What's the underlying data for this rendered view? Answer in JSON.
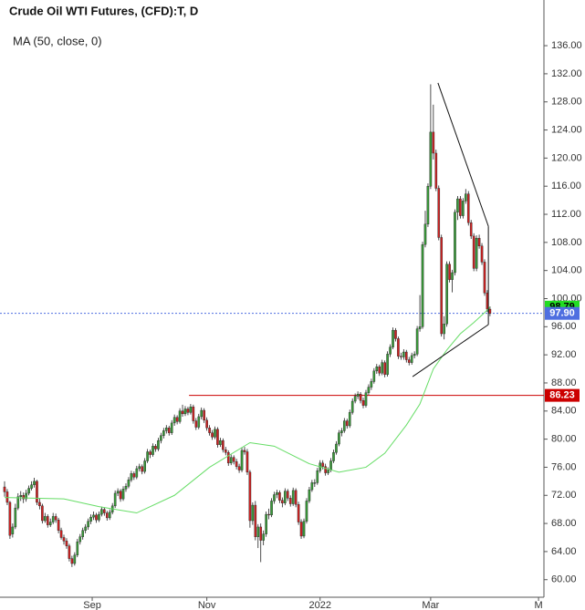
{
  "chart_data": {
    "type": "candlestick",
    "title": "Crude Oil WTI Futures, (CFD):T, D",
    "up_color": "#3a9a3a",
    "down_color": "#cc2222",
    "xlim": [
      0,
      200
    ],
    "xticks": [
      {
        "value": 32.5,
        "label": "Sep"
      },
      {
        "value": 75,
        "label": "Nov"
      },
      {
        "value": 117,
        "label": "2022"
      },
      {
        "value": 158,
        "label": "Mar"
      },
      {
        "value": 198,
        "label": "M"
      }
    ],
    "ylim": [
      57.5,
      142.5
    ],
    "yticks": [
      {
        "value": 60,
        "label": "60.00"
      },
      {
        "value": 64,
        "label": "64.00"
      },
      {
        "value": 68,
        "label": "68.00"
      },
      {
        "value": 72,
        "label": "72.00"
      },
      {
        "value": 76,
        "label": "76.00"
      },
      {
        "value": 80,
        "label": "80.00"
      },
      {
        "value": 84,
        "label": "84.00"
      },
      {
        "value": 88,
        "label": "88.00"
      },
      {
        "value": 92,
        "label": "92.00"
      },
      {
        "value": 96,
        "label": "96.00"
      },
      {
        "value": 100,
        "label": "100.00"
      },
      {
        "value": 104,
        "label": "104.00"
      },
      {
        "value": 108,
        "label": "108.00"
      },
      {
        "value": 112,
        "label": "112.00"
      },
      {
        "value": 116,
        "label": "116.00"
      },
      {
        "value": 120,
        "label": "120.00"
      },
      {
        "value": 124,
        "label": "124.00"
      },
      {
        "value": 128,
        "label": "128.00"
      },
      {
        "value": 132,
        "label": "132.00"
      },
      {
        "value": 136,
        "label": "136.00"
      }
    ],
    "ohlc": [
      [
        73.2,
        74.0,
        71.8,
        72.5
      ],
      [
        72.5,
        72.9,
        70.6,
        71
      ],
      [
        71,
        71.2,
        65.8,
        66.3
      ],
      [
        66.5,
        68,
        66,
        67.5
      ],
      [
        67.5,
        70.8,
        67.2,
        70.2
      ],
      [
        70.2,
        72.3,
        69.9,
        71.8
      ],
      [
        71.8,
        72.6,
        71.2,
        72
      ],
      [
        72,
        72.4,
        70.9,
        71.5
      ],
      [
        71.5,
        72.8,
        71.1,
        72.3
      ],
      [
        72.3,
        73.4,
        72,
        73
      ],
      [
        73,
        74,
        72.7,
        73.5
      ],
      [
        73.5,
        74.5,
        73.1,
        74
      ],
      [
        74,
        74.2,
        70.6,
        71
      ],
      [
        71,
        71.6,
        70,
        70.5
      ],
      [
        70.5,
        70.8,
        68,
        68.4
      ],
      [
        68.4,
        69.5,
        68.1,
        69
      ],
      [
        69,
        69.3,
        67.4,
        67.8
      ],
      [
        67.8,
        68.7,
        67.5,
        68.2
      ],
      [
        68.2,
        69.5,
        67.9,
        69
      ],
      [
        69,
        69.4,
        68.1,
        68.5
      ],
      [
        68.5,
        68.8,
        66.6,
        67
      ],
      [
        67,
        67.4,
        65.7,
        66
      ],
      [
        66,
        66.4,
        65,
        65.5
      ],
      [
        65.5,
        65.9,
        64.4,
        64.8
      ],
      [
        64.8,
        65.1,
        62.6,
        63
      ],
      [
        63,
        63.4,
        61.8,
        62.3
      ],
      [
        62.3,
        63.9,
        62,
        63.5
      ],
      [
        63.5,
        65.8,
        63.2,
        65.4
      ],
      [
        65.4,
        66.5,
        65,
        66.1
      ],
      [
        66.1,
        67.4,
        65.7,
        67
      ],
      [
        67,
        67.9,
        66.6,
        67.5
      ],
      [
        67.5,
        68.7,
        67.1,
        68.3
      ],
      [
        68.3,
        69.3,
        67.9,
        68.9
      ],
      [
        68.9,
        69.7,
        68.5,
        69.2
      ],
      [
        69.2,
        69.5,
        68.1,
        68.5
      ],
      [
        68.5,
        69.7,
        68.2,
        69.3
      ],
      [
        69.3,
        70.4,
        69,
        70
      ],
      [
        70,
        70.3,
        69.1,
        69.5
      ],
      [
        69.5,
        69.8,
        68.4,
        68.8
      ],
      [
        68.8,
        70,
        68.5,
        69.6
      ],
      [
        69.6,
        70.9,
        69.3,
        70.5
      ],
      [
        70.5,
        72.7,
        70.2,
        72.3
      ],
      [
        72.3,
        73,
        71.9,
        72.6
      ],
      [
        72.6,
        72.9,
        71.1,
        71.5
      ],
      [
        71.5,
        73.3,
        71.2,
        72.9
      ],
      [
        72.9,
        73.7,
        72.5,
        73.3
      ],
      [
        73.3,
        74.6,
        73,
        74.2
      ],
      [
        74.2,
        75.5,
        73.9,
        75.1
      ],
      [
        75.1,
        75.4,
        74.2,
        74.6
      ],
      [
        74.6,
        76.2,
        74.3,
        75.8
      ],
      [
        75.8,
        76.5,
        75.4,
        76.1
      ],
      [
        76.1,
        76.4,
        75,
        75.4
      ],
      [
        75.4,
        77.3,
        75.1,
        76.9
      ],
      [
        76.9,
        78.6,
        76.6,
        78.2
      ],
      [
        78.2,
        78.5,
        77.3,
        77.8
      ],
      [
        77.8,
        79.4,
        77.5,
        79
      ],
      [
        79,
        79.3,
        78.2,
        78.6
      ],
      [
        78.6,
        80.2,
        78.3,
        79.8
      ],
      [
        79.8,
        80.9,
        79.4,
        80.5
      ],
      [
        80.5,
        81.6,
        80.1,
        81.2
      ],
      [
        81.2,
        82,
        80.8,
        81.6
      ],
      [
        81.6,
        81.9,
        80.5,
        80.9
      ],
      [
        80.9,
        82.7,
        80.6,
        82.3
      ],
      [
        82.3,
        83.5,
        81.9,
        83.1
      ],
      [
        83.1,
        83.4,
        82.1,
        82.5
      ],
      [
        82.5,
        84.4,
        82.2,
        84
      ],
      [
        84,
        84.9,
        83.2,
        83.6
      ],
      [
        83.6,
        84.7,
        83.3,
        84.3
      ],
      [
        84.3,
        84.6,
        83.4,
        83.8
      ],
      [
        83.8,
        85,
        83.5,
        84.6
      ],
      [
        84.6,
        84.9,
        82.2,
        82.6
      ],
      [
        82.6,
        83,
        81.3,
        81.7
      ],
      [
        81.7,
        83.6,
        81.4,
        83.2
      ],
      [
        83.2,
        84.5,
        82.8,
        84.1
      ],
      [
        84.1,
        84.4,
        82.3,
        82.7
      ],
      [
        82.7,
        83.1,
        81.2,
        81.6
      ],
      [
        81.6,
        82,
        80.5,
        80.9
      ],
      [
        80.9,
        81.3,
        79.9,
        80.3
      ],
      [
        80.3,
        81.8,
        80,
        81.4
      ],
      [
        81.4,
        81.7,
        78.8,
        79.2
      ],
      [
        79.2,
        80.2,
        78.9,
        79.8
      ],
      [
        79.8,
        80.1,
        78.1,
        78.5
      ],
      [
        78.5,
        78.9,
        77.7,
        78.1
      ],
      [
        78.1,
        78.4,
        76.2,
        76.6
      ],
      [
        76.6,
        77.8,
        76.3,
        77.4
      ],
      [
        77.4,
        77.7,
        76.4,
        76.8
      ],
      [
        76.8,
        77.2,
        75.7,
        76.1
      ],
      [
        76.1,
        76.5,
        75.2,
        75.6
      ],
      [
        75.6,
        78.8,
        75.3,
        78.4
      ],
      [
        78.4,
        78.9,
        77.8,
        78.2
      ],
      [
        78.2,
        78.6,
        74.9,
        75.3
      ],
      [
        75.3,
        75.6,
        67.4,
        68.4
      ],
      [
        68.4,
        71,
        67.8,
        70.6
      ],
      [
        70.6,
        71.2,
        65.6,
        66.1
      ],
      [
        66.1,
        67.9,
        64.5,
        67.5
      ],
      [
        67.5,
        68,
        62.5,
        65.6
      ],
      [
        65.6,
        67,
        64.9,
        66.5
      ],
      [
        66.5,
        69.7,
        66.1,
        69.3
      ],
      [
        69.3,
        70.1,
        68.6,
        69.2
      ],
      [
        69.2,
        71.6,
        68.9,
        71.2
      ],
      [
        71.2,
        72.5,
        70.8,
        72.1
      ],
      [
        72.1,
        72.8,
        71.6,
        72.4
      ],
      [
        72.4,
        72.7,
        70.9,
        71.3
      ],
      [
        71.3,
        71.7,
        70.3,
        70.9
      ],
      [
        70.9,
        73,
        70.6,
        72.6
      ],
      [
        72.6,
        72.9,
        71.2,
        71.6
      ],
      [
        71.6,
        72,
        70.4,
        70.8
      ],
      [
        70.8,
        73.1,
        70.5,
        72.7
      ],
      [
        72.7,
        73,
        70.3,
        70.7
      ],
      [
        70.7,
        71.1,
        67.8,
        68.2
      ],
      [
        68.2,
        68.6,
        65.8,
        66.2
      ],
      [
        66.2,
        68.7,
        65.9,
        68.3
      ],
      [
        68.3,
        71.6,
        68,
        71.2
      ],
      [
        71.2,
        73.2,
        70.9,
        72.8
      ],
      [
        72.8,
        74.2,
        72.5,
        73.8
      ],
      [
        73.8,
        74.3,
        73.2,
        73.8
      ],
      [
        73.8,
        75.9,
        73.5,
        75.5
      ],
      [
        75.5,
        77,
        75.2,
        76.6
      ],
      [
        76.6,
        77,
        75.7,
        76.1
      ],
      [
        76.1,
        76.5,
        74.8,
        75.2
      ],
      [
        75.2,
        76,
        74.9,
        75.6
      ],
      [
        75.6,
        77.3,
        75.3,
        76.9
      ],
      [
        76.9,
        78.5,
        76.6,
        78.1
      ],
      [
        78.1,
        79.7,
        77.8,
        79.3
      ],
      [
        79.3,
        81.3,
        79,
        80.9
      ],
      [
        80.9,
        81.6,
        80.4,
        81.2
      ],
      [
        81.2,
        83,
        80.9,
        82.6
      ],
      [
        82.6,
        82.9,
        81.5,
        81.9
      ],
      [
        81.9,
        84.2,
        81.6,
        83.8
      ],
      [
        83.8,
        85.8,
        83.5,
        85.4
      ],
      [
        85.4,
        86.5,
        85.1,
        86.1
      ],
      [
        86.1,
        86.8,
        85.7,
        86.4
      ],
      [
        86.4,
        86.7,
        85.1,
        85.5
      ],
      [
        85.5,
        85.9,
        84.4,
        84.8
      ],
      [
        84.8,
        87,
        84.5,
        86.6
      ],
      [
        86.6,
        87.8,
        86.3,
        87.4
      ],
      [
        87.4,
        88.6,
        87,
        88.2
      ],
      [
        88.2,
        90.1,
        87.9,
        89.7
      ],
      [
        89.7,
        90.7,
        89.3,
        90.3
      ],
      [
        90.3,
        90.6,
        89,
        89.4
      ],
      [
        89.4,
        91.3,
        89.1,
        90.9
      ],
      [
        90.9,
        91.2,
        88.8,
        89.2
      ],
      [
        89.2,
        92.5,
        88.9,
        92.1
      ],
      [
        92.1,
        93.5,
        91.7,
        93.1
      ],
      [
        93.1,
        95.9,
        92.8,
        95.5
      ],
      [
        95.5,
        95.8,
        93.9,
        94.3
      ],
      [
        94.3,
        94.6,
        91.4,
        91.8
      ],
      [
        91.8,
        92.3,
        91.3,
        91.7
      ],
      [
        91.7,
        92.8,
        91.3,
        92.4
      ],
      [
        92.4,
        92.7,
        90.9,
        91.3
      ],
      [
        91.3,
        91.7,
        90.5,
        90.9
      ],
      [
        90.9,
        92.3,
        90.6,
        91.9
      ],
      [
        91.9,
        92.5,
        91.5,
        92.1
      ],
      [
        92.1,
        96.1,
        91.8,
        95.7
      ],
      [
        95.7,
        100.5,
        95.3,
        96
      ],
      [
        96,
        108.1,
        95.7,
        107.7
      ],
      [
        107.7,
        112.5,
        107.3,
        110.6
      ],
      [
        110.6,
        116.4,
        110.2,
        116
      ],
      [
        116,
        130.5,
        115.6,
        123.7
      ],
      [
        123.7,
        127.6,
        119.8,
        120.7
      ],
      [
        120.7,
        121.2,
        115.3,
        115.7
      ],
      [
        115.7,
        116.1,
        108.3,
        108.7
      ],
      [
        108.7,
        109.1,
        94.6,
        95
      ],
      [
        95,
        97.5,
        94.2,
        96.4
      ],
      [
        96.4,
        105.3,
        96,
        104.9
      ],
      [
        104.9,
        105.3,
        102.3,
        102.7
      ],
      [
        102.7,
        104.1,
        100.9,
        103.7
      ],
      [
        103.7,
        112.7,
        103.3,
        112.3
      ],
      [
        112.3,
        114.6,
        111.2,
        114.2
      ],
      [
        114.2,
        114.6,
        111.4,
        111.8
      ],
      [
        111.8,
        114.3,
        111.4,
        113.9
      ],
      [
        113.9,
        115.6,
        113.5,
        114.9
      ],
      [
        114.9,
        115.3,
        110.4,
        110.8
      ],
      [
        110.8,
        111.2,
        108.5,
        108.9
      ],
      [
        108.9,
        109.3,
        103.9,
        104.3
      ],
      [
        104.3,
        109,
        103.9,
        108.6
      ],
      [
        108.6,
        109.1,
        107.1,
        107.5
      ],
      [
        107.5,
        107.9,
        104.8,
        105.2
      ],
      [
        105.2,
        105.6,
        100.4,
        100.8
      ],
      [
        100.8,
        101.2,
        98.1,
        98.5
      ],
      [
        98.5,
        98.9,
        97.5,
        97.9
      ]
    ],
    "series": [
      {
        "name": "MA (50, close, 0)",
        "color": "#66dd66",
        "x": [
          0,
          22,
          35,
          49,
          63,
          76,
          91,
          100,
          113,
          124,
          134,
          141,
          149,
          154,
          159,
          164,
          169,
          174,
          178,
          180
        ],
        "values": [
          71.7,
          71.5,
          70.4,
          69.5,
          72,
          76,
          79.5,
          79,
          76.5,
          75.3,
          76,
          78,
          82,
          85,
          90,
          92.7,
          95,
          96.6,
          98,
          98.79
        ]
      }
    ],
    "trendlines": [
      {
        "x": [
          160.7,
          179.4
        ],
        "y": [
          130.7,
          110.3
        ]
      },
      {
        "x": [
          151.3,
          179.4
        ],
        "y": [
          88.9,
          96.3
        ]
      },
      {
        "x": [
          179.4,
          179.4
        ],
        "y": [
          110.3,
          96.3
        ]
      }
    ],
    "level": {
      "value": 86.23,
      "x_start": 68.4,
      "color": "#cc0000"
    },
    "price_labels": [
      {
        "value": 98.79,
        "color": "#22dd22",
        "text_color": "#000000"
      },
      {
        "value": 97.9,
        "label": "97.90",
        "color": "#4f6fe0",
        "text_color": "#ffffff"
      },
      {
        "value": 86.23,
        "color": "#cc0000",
        "text_color": "#ffffff"
      }
    ]
  }
}
